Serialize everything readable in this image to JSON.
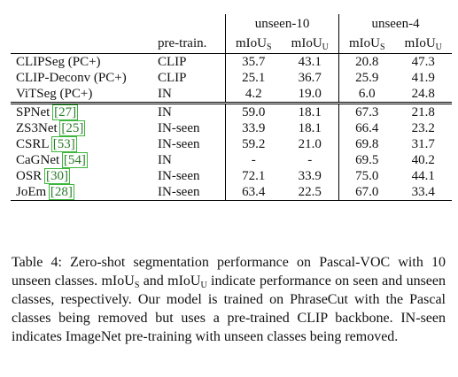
{
  "table": {
    "group_headers": [
      "unseen-10",
      "unseen-4"
    ],
    "pretrain_header": "pre-train.",
    "sub_headers": [
      {
        "base": "mIoU",
        "sub": "S"
      },
      {
        "base": "mIoU",
        "sub": "U"
      },
      {
        "base": "mIoU",
        "sub": "S"
      },
      {
        "base": "mIoU",
        "sub": "U"
      }
    ],
    "section1": [
      {
        "method": "CLIPSeg (PC+)",
        "cite": "",
        "pretrain": "CLIP",
        "values": [
          "35.7",
          "43.1",
          "20.8",
          "47.3"
        ],
        "bold": [
          true,
          true,
          false,
          true
        ]
      },
      {
        "method": "CLIP-Deconv (PC+)",
        "cite": "",
        "pretrain": "CLIP",
        "values": [
          "25.1",
          "36.7",
          "25.9",
          "41.9"
        ],
        "bold": [
          false,
          false,
          true,
          false
        ]
      },
      {
        "method": "ViTSeg (PC+)",
        "cite": "",
        "pretrain": "IN",
        "values": [
          "4.2",
          "19.0",
          "6.0",
          "24.8"
        ],
        "bold": [
          false,
          false,
          false,
          false
        ]
      }
    ],
    "section2": [
      {
        "method": "SPNet ",
        "cite": "27",
        "pretrain": "IN",
        "values": [
          "59.0",
          "18.1",
          "67.3",
          "21.8"
        ],
        "bold": [
          false,
          false,
          false,
          false
        ]
      },
      {
        "method": "ZS3Net ",
        "cite": "25",
        "pretrain": "IN-seen",
        "values": [
          "33.9",
          "18.1",
          "66.4",
          "23.2"
        ],
        "bold": [
          false,
          false,
          false,
          false
        ]
      },
      {
        "method": "CSRL ",
        "cite": "53",
        "pretrain": "IN-seen",
        "values": [
          "59.2",
          "21.0",
          "69.8",
          "31.7"
        ],
        "bold": [
          false,
          false,
          false,
          false
        ]
      },
      {
        "method": "CaGNet ",
        "cite": "54",
        "pretrain": "IN",
        "values": [
          "-",
          "-",
          "69.5",
          "40.2"
        ],
        "bold": [
          false,
          false,
          false,
          false
        ]
      },
      {
        "method": "OSR ",
        "cite": "30",
        "pretrain": "IN-seen",
        "values": [
          "72.1",
          "33.9",
          "75.0",
          "44.1"
        ],
        "bold": [
          true,
          true,
          true,
          true
        ]
      },
      {
        "method": "JoEm ",
        "cite": "28",
        "pretrain": "IN-seen",
        "values": [
          "63.4",
          "22.5",
          "67.0",
          "33.4"
        ],
        "bold": [
          false,
          false,
          false,
          false
        ]
      }
    ]
  },
  "caption": {
    "p1": "Table 4: Zero-shot segmentation performance on Pascal-VOC with 10 unseen classes.  mIoU",
    "sub_s": "S",
    "p2": " and mIoU",
    "sub_u": "U",
    "p3": " indicate performance on seen and unseen classes, respectively.  Our model is trained on PhraseCut with the Pascal classes being removed but uses a pre-trained CLIP backbone.  IN-seen indicates ImageNet pre-training with unseen classes being removed."
  }
}
